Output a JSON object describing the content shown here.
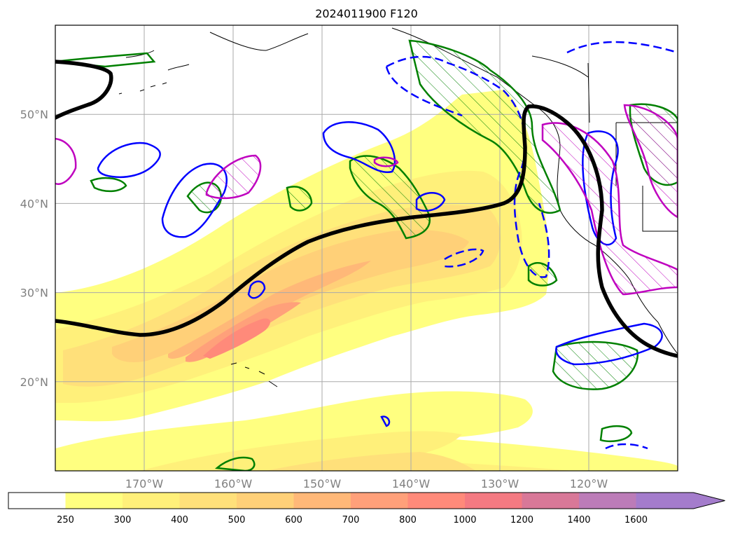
{
  "title": "2024011900 F120",
  "lat_labels": [
    {
      "text": "20°N",
      "lat": 20
    },
    {
      "text": "30°N",
      "lat": 30
    },
    {
      "text": "40°N",
      "lat": 40
    },
    {
      "text": "50°N",
      "lat": 50
    }
  ],
  "lon_labels": [
    {
      "text": "170°W",
      "lon": -170
    },
    {
      "text": "160°W",
      "lon": -160
    },
    {
      "text": "150°W",
      "lon": -150
    },
    {
      "text": "140°W",
      "lon": -140
    },
    {
      "text": "130°W",
      "lon": -130
    },
    {
      "text": "120°W",
      "lon": -120
    }
  ],
  "extent": {
    "lon_min": -180,
    "lon_max": -110,
    "lat_min": 10,
    "lat_max": 60
  },
  "colorbar": {
    "ticks": [
      "250",
      "300",
      "400",
      "500",
      "600",
      "700",
      "800",
      "1000",
      "1200",
      "1400",
      "1600"
    ],
    "below_color": "#ffffff",
    "colors": [
      "#ffff80",
      "#fff07a",
      "#ffe07a",
      "#ffd078",
      "#ffb878",
      "#ffa07a",
      "#ff8a7a",
      "#f47a82",
      "#d87898",
      "#bc7cb8",
      "#a47ccc"
    ],
    "extend": "max"
  },
  "colors": {
    "green": "#008000",
    "blue": "#0000ff",
    "magenta": "#bf00bf",
    "black": "#000000",
    "grid": "#aaaaaa"
  }
}
